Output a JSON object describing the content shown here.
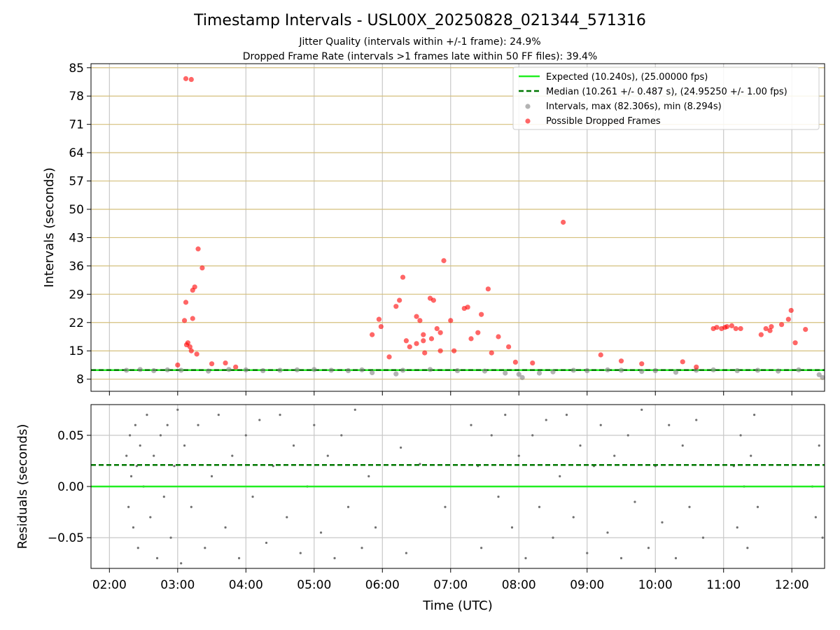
{
  "chart_data": [
    {
      "type": "scatter",
      "title": "Timestamp Intervals - USL00X_20250828_021344_571316",
      "subtitle_lines": [
        "Jitter Quality (intervals within +/-1 frame): 24.9%",
        "Dropped Frame Rate (intervals >1 frames late within 50 FF files): 39.4%"
      ],
      "xlabel": "",
      "ylabel": "Intervals (seconds)",
      "x_unit": "hours UTC",
      "xlim": [
        1.73,
        12.48
      ],
      "ylim": [
        5.0,
        86.0
      ],
      "yticks": [
        8,
        15,
        22,
        29,
        36,
        43,
        50,
        57,
        64,
        71,
        78,
        85
      ],
      "ytick_labels": [
        "8",
        "15",
        "22",
        "29",
        "36",
        "43",
        "50",
        "57",
        "64",
        "71",
        "78",
        "85"
      ],
      "xticks": [
        2,
        3,
        4,
        5,
        6,
        7,
        8,
        9,
        10,
        11,
        12
      ],
      "grid": true,
      "legend_position": "top-right",
      "legend": [
        {
          "label": "Expected (10.240s), (25.00000 fps)",
          "kind": "line",
          "color": "#22ee22",
          "dash": "solid"
        },
        {
          "label": "Median (10.261 +/- 0.487 s), (24.95250 +/- 1.00 fps)",
          "kind": "line",
          "color": "#007700",
          "dash": "dashed"
        },
        {
          "label": "Intervals, max (82.306s), min (8.294s)",
          "kind": "marker",
          "color": "#808080"
        },
        {
          "label": "Possible Dropped Frames",
          "kind": "marker",
          "color": "#ff0000"
        }
      ],
      "expected_interval": 10.24,
      "median_interval": 10.261,
      "series": [
        {
          "name": "Intervals, max (82.306s), min (8.294s)",
          "color": "#808080",
          "x": [
            2.25,
            2.45,
            2.65,
            2.85,
            3.05,
            3.45,
            3.75,
            4.0,
            4.25,
            4.5,
            4.75,
            5.0,
            5.25,
            5.5,
            5.7,
            5.85,
            6.2,
            6.3,
            6.7,
            7.1,
            7.5,
            7.8,
            8.0,
            8.05,
            8.3,
            8.5,
            8.8,
            9.0,
            9.3,
            9.5,
            9.8,
            10.0,
            10.3,
            10.6,
            10.85,
            11.2,
            11.5,
            11.8,
            12.1,
            12.4,
            12.45
          ],
          "y": [
            10.2,
            10.4,
            10.1,
            10.3,
            10.2,
            10.0,
            10.4,
            10.3,
            10.1,
            10.2,
            10.3,
            10.4,
            10.2,
            10.1,
            10.3,
            9.6,
            9.3,
            10.2,
            10.4,
            10.1,
            10.0,
            9.5,
            9.2,
            8.4,
            9.5,
            9.8,
            10.2,
            10.1,
            10.3,
            10.2,
            9.9,
            10.1,
            9.7,
            10.2,
            10.3,
            10.1,
            10.2,
            10.0,
            10.3,
            9.1,
            8.4
          ]
        },
        {
          "name": "Possible Dropped Frames",
          "color": "#ff0000",
          "x": [
            3.12,
            3.2,
            3.1,
            3.12,
            3.15,
            3.18,
            3.22,
            3.25,
            3.3,
            3.36,
            3.22,
            3.28,
            3.13,
            3.2,
            3.0,
            3.5,
            3.7,
            3.85,
            5.85,
            5.95,
            5.98,
            6.1,
            6.2,
            6.25,
            6.3,
            6.35,
            6.4,
            6.5,
            6.55,
            6.6,
            6.7,
            6.75,
            6.8,
            6.85,
            6.9,
            7.0,
            7.2,
            7.25,
            7.3,
            7.4,
            7.45,
            7.55,
            7.7,
            7.85,
            6.6,
            6.72,
            6.62,
            6.5,
            6.85,
            7.05,
            7.6,
            7.95,
            8.2,
            8.65,
            9.2,
            9.5,
            9.8,
            10.4,
            10.6,
            10.85,
            10.9,
            10.97,
            11.05,
            11.12,
            11.18,
            11.25,
            11.55,
            11.62,
            11.68,
            11.85,
            11.95,
            11.99,
            12.05,
            12.2,
            11.7,
            11.02
          ],
          "y": [
            82.3,
            82.1,
            22.5,
            27.0,
            17.0,
            16.0,
            30.0,
            30.8,
            40.2,
            35.5,
            23.0,
            14.2,
            16.5,
            15.0,
            11.5,
            11.8,
            12.0,
            11.0,
            19.0,
            22.8,
            21.0,
            13.5,
            26.0,
            27.5,
            33.2,
            17.5,
            16.0,
            23.5,
            22.5,
            19.0,
            28.0,
            27.5,
            20.5,
            19.5,
            37.3,
            22.5,
            25.5,
            25.8,
            18.0,
            19.5,
            24.0,
            30.3,
            18.5,
            16.0,
            17.5,
            18.0,
            14.5,
            16.8,
            15.0,
            15.0,
            14.5,
            12.2,
            12.0,
            46.8,
            14.0,
            12.5,
            11.8,
            12.3,
            11.0,
            20.5,
            20.8,
            20.5,
            21.0,
            21.2,
            20.5,
            20.5,
            19.0,
            20.5,
            20.0,
            21.5,
            22.8,
            25.0,
            17.0,
            20.3,
            21.0,
            20.8
          ]
        }
      ]
    },
    {
      "type": "scatter",
      "title": "",
      "xlabel": "Time (UTC)",
      "ylabel": "Residuals (seconds)",
      "x_unit": "hours UTC",
      "xlim": [
        1.73,
        12.48
      ],
      "ylim": [
        -0.08,
        0.08
      ],
      "yticks": [
        0.05,
        0.0,
        -0.05
      ],
      "ytick_labels": [
        "0.05",
        "0.00",
        "−0.05"
      ],
      "xticks": [
        2,
        3,
        4,
        5,
        6,
        7,
        8,
        9,
        10,
        11,
        12
      ],
      "xtick_labels": [
        "02:00",
        "03:00",
        "04:00",
        "05:00",
        "06:00",
        "07:00",
        "08:00",
        "09:00",
        "10:00",
        "11:00",
        "12:00"
      ],
      "grid": true,
      "expected_residual": 0.0,
      "median_residual": 0.021,
      "series": [
        {
          "name": "",
          "color": "#707070",
          "x": [
            2.25,
            2.28,
            2.3,
            2.32,
            2.35,
            2.38,
            2.4,
            2.42,
            2.45,
            2.5,
            2.55,
            2.6,
            2.65,
            2.7,
            2.75,
            2.8,
            2.85,
            2.9,
            2.95,
            3.0,
            3.05,
            3.1,
            3.2,
            3.3,
            3.4,
            3.5,
            3.6,
            3.7,
            3.8,
            3.9,
            4.0,
            4.1,
            4.2,
            4.3,
            4.4,
            4.5,
            4.6,
            4.7,
            4.8,
            4.9,
            5.0,
            5.1,
            5.2,
            5.3,
            5.4,
            5.5,
            5.6,
            5.7,
            5.8,
            5.9,
            6.27,
            6.35,
            6.55,
            6.92,
            7.3,
            7.4,
            7.45,
            7.6,
            7.7,
            7.8,
            7.9,
            8.0,
            8.1,
            8.2,
            8.3,
            8.4,
            8.5,
            8.6,
            8.7,
            8.8,
            8.9,
            9.0,
            9.1,
            9.2,
            9.3,
            9.4,
            9.5,
            9.6,
            9.7,
            9.8,
            9.9,
            10.0,
            10.1,
            10.2,
            10.3,
            10.4,
            10.5,
            10.6,
            10.7,
            11.15,
            11.2,
            11.25,
            11.3,
            11.35,
            11.4,
            11.45,
            11.5,
            12.3,
            12.35,
            12.4,
            12.45
          ],
          "y": [
            0.03,
            -0.02,
            0.05,
            0.01,
            -0.04,
            0.06,
            0.02,
            -0.06,
            0.04,
            0.0,
            0.07,
            -0.03,
            0.03,
            -0.07,
            0.05,
            -0.01,
            0.06,
            -0.05,
            0.02,
            0.075,
            -0.075,
            0.04,
            -0.02,
            0.06,
            -0.06,
            0.01,
            0.07,
            -0.04,
            0.03,
            -0.07,
            0.05,
            -0.01,
            0.065,
            -0.055,
            0.02,
            0.07,
            -0.03,
            0.04,
            -0.065,
            0.0,
            0.06,
            -0.045,
            0.03,
            -0.07,
            0.05,
            -0.02,
            0.075,
            -0.06,
            0.01,
            -0.04,
            0.038,
            -0.065,
            0.022,
            -0.02,
            0.06,
            0.02,
            -0.06,
            0.05,
            -0.01,
            0.07,
            -0.04,
            0.03,
            -0.07,
            0.05,
            -0.02,
            0.065,
            -0.05,
            0.01,
            0.07,
            -0.03,
            0.04,
            -0.065,
            0.02,
            0.06,
            -0.045,
            0.03,
            -0.07,
            0.05,
            -0.015,
            0.075,
            -0.06,
            0.02,
            -0.035,
            0.06,
            -0.07,
            0.04,
            -0.02,
            0.065,
            -0.05,
            0.02,
            -0.04,
            0.05,
            0.0,
            -0.06,
            0.03,
            0.07,
            -0.02,
            0.0,
            -0.03,
            0.04,
            -0.05
          ]
        }
      ]
    }
  ]
}
